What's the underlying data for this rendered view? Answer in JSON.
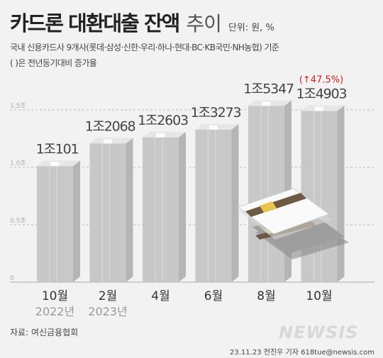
{
  "header": {
    "title_bold": "카드론 대환대출 잔액",
    "title_light": "추이",
    "unit": "단위: 원, %",
    "subtitle_line1": "국내 신용카드사 9개사(롯데·삼성·신한·우리·하나·현대·BC·KB국민·NH농협) 기준",
    "subtitle_line2": "( )은 전년동기대비 증가율"
  },
  "chart_data": {
    "type": "bar",
    "categories": [
      "10월",
      "2월",
      "4월",
      "6월",
      "8월",
      "10월"
    ],
    "year_labels": [
      "2022년",
      "2023년",
      "",
      "",
      "",
      ""
    ],
    "values": [
      10101,
      12068,
      12603,
      13273,
      15347,
      14903
    ],
    "value_labels": [
      "1조101",
      "1조2068",
      "1조2603",
      "1조3273",
      "1조5347",
      "1조4903"
    ],
    "unit": "억원",
    "y_ticks": [
      {
        "value": 0,
        "label": "0"
      },
      {
        "value": 5000,
        "label": "0.5조"
      },
      {
        "value": 10000,
        "label": "1.0조"
      },
      {
        "value": 15000,
        "label": "1.5조"
      }
    ],
    "ylim": [
      0,
      15000
    ],
    "grid": "dashed",
    "annotation": {
      "index": 5,
      "arrow": "↑",
      "text": "47.5%",
      "color": "#d62020"
    },
    "bar_color": "#c8c8c8"
  },
  "footer": {
    "source": "자료: 여신금융협회",
    "credit": "23.11.23 전진우 기자 618tue@newsis.com",
    "logo": "NEWSIS"
  }
}
